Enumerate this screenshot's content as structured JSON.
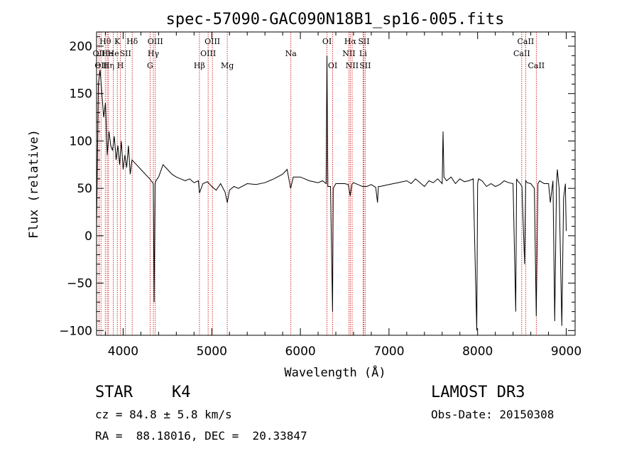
{
  "chart_data": {
    "type": "line",
    "title": "spec-57090-GAC090N18B1_sp16-005.fits",
    "xlabel": "Wavelength (Å)",
    "ylabel": "Flux (relative)",
    "xlim": [
      3700,
      9100
    ],
    "ylim": [
      -105,
      215
    ],
    "xticks": [
      4000,
      5000,
      6000,
      7000,
      8000,
      9000
    ],
    "xtick_labels": [
      "4000",
      "5000",
      "6000",
      "7000",
      "8000",
      "9000"
    ],
    "yticks": [
      -100,
      -50,
      0,
      50,
      100,
      150,
      200
    ],
    "ytick_labels": [
      "−100",
      "−50",
      "0",
      "50",
      "100",
      "150",
      "200"
    ],
    "grid": false,
    "spectrum": {
      "name": "flux",
      "x": [
        3700,
        3720,
        3740,
        3760,
        3780,
        3800,
        3820,
        3840,
        3860,
        3880,
        3900,
        3920,
        3940,
        3960,
        3980,
        4000,
        4020,
        4040,
        4060,
        4080,
        4100,
        4150,
        4200,
        4250,
        4300,
        4340,
        4350,
        4360,
        4370,
        4400,
        4450,
        4500,
        4550,
        4600,
        4650,
        4700,
        4750,
        4800,
        4850,
        4861,
        4900,
        4950,
        5000,
        5050,
        5100,
        5150,
        5175,
        5200,
        5250,
        5300,
        5400,
        5500,
        5600,
        5700,
        5800,
        5850,
        5890,
        5895,
        5920,
        6000,
        6100,
        6200,
        6250,
        6290,
        6300,
        6310,
        6340,
        6363,
        6370,
        6400,
        6500,
        6540,
        6563,
        6580,
        6600,
        6650,
        6700,
        6750,
        6800,
        6850,
        6870,
        6880,
        6900,
        7000,
        7100,
        7200,
        7250,
        7300,
        7350,
        7400,
        7450,
        7500,
        7550,
        7600,
        7610,
        7620,
        7650,
        7700,
        7750,
        7800,
        7850,
        7900,
        7950,
        7990,
        8000,
        8010,
        8050,
        8100,
        8150,
        8200,
        8250,
        8300,
        8350,
        8400,
        8430,
        8440,
        8450,
        8480,
        8500,
        8530,
        8542,
        8560,
        8600,
        8640,
        8662,
        8680,
        8700,
        8750,
        8800,
        8820,
        8850,
        8870,
        8890,
        8900,
        8920,
        8950,
        8970,
        8990,
        9000
      ],
      "y": [
        5,
        160,
        175,
        150,
        125,
        140,
        85,
        110,
        95,
        90,
        105,
        80,
        95,
        75,
        100,
        70,
        85,
        72,
        95,
        65,
        80,
        75,
        70,
        65,
        60,
        55,
        -70,
        55,
        58,
        62,
        75,
        70,
        65,
        62,
        60,
        58,
        60,
        56,
        58,
        45,
        55,
        57,
        52,
        48,
        55,
        46,
        35,
        48,
        52,
        50,
        55,
        54,
        56,
        60,
        65,
        70,
        50,
        52,
        62,
        62,
        58,
        56,
        58,
        55,
        190,
        52,
        52,
        -80,
        50,
        55,
        55,
        54,
        42,
        54,
        56,
        54,
        52,
        52,
        54,
        51,
        35,
        52,
        52,
        54,
        56,
        58,
        55,
        60,
        56,
        52,
        58,
        56,
        60,
        55,
        110,
        62,
        58,
        62,
        55,
        60,
        57,
        58,
        60,
        -100,
        55,
        60,
        58,
        52,
        55,
        52,
        54,
        58,
        56,
        55,
        -80,
        60,
        58,
        55,
        52,
        -30,
        58,
        56,
        55,
        50,
        -85,
        55,
        58,
        55,
        55,
        35,
        58,
        -90,
        55,
        70,
        50,
        -95,
        40,
        55,
        5
      ]
    },
    "lines": [
      {
        "wave": 3727,
        "label": "OII",
        "row": 2
      },
      {
        "wave": 3750,
        "label": "OII",
        "row": 3
      },
      {
        "wave": 3798,
        "label": "Hθ",
        "row": 1
      },
      {
        "wave": 3820,
        "label": "He",
        "row": 2
      },
      {
        "wave": 3835,
        "label": "Hη",
        "row": 3
      },
      {
        "wave": 3889,
        "label": "He",
        "row": 2
      },
      {
        "wave": 3934,
        "label": "K",
        "row": 1
      },
      {
        "wave": 3969,
        "label": "H",
        "row": 3
      },
      {
        "wave": 4026,
        "label": "SII",
        "row": 2
      },
      {
        "wave": 4102,
        "label": "Hδ",
        "row": 1
      },
      {
        "wave": 4304,
        "label": "G",
        "row": 3
      },
      {
        "wave": 4341,
        "label": "Hγ",
        "row": 2
      },
      {
        "wave": 4363,
        "label": "OIII",
        "row": 1
      },
      {
        "wave": 4861,
        "label": "Hβ",
        "row": 3
      },
      {
        "wave": 4959,
        "label": "OIII",
        "row": 2
      },
      {
        "wave": 5007,
        "label": "OIII",
        "row": 1
      },
      {
        "wave": 5175,
        "label": "Mg",
        "row": 3
      },
      {
        "wave": 5893,
        "label": "Na",
        "row": 2
      },
      {
        "wave": 6300,
        "label": "OI",
        "row": 1
      },
      {
        "wave": 6364,
        "label": "OI",
        "row": 3
      },
      {
        "wave": 6548,
        "label": "NII",
        "row": 2
      },
      {
        "wave": 6563,
        "label": "Hα",
        "row": 1
      },
      {
        "wave": 6584,
        "label": "NII",
        "row": 3
      },
      {
        "wave": 6707,
        "label": "Li",
        "row": 2
      },
      {
        "wave": 6716,
        "label": "SII",
        "row": 1
      },
      {
        "wave": 6731,
        "label": "SII",
        "row": 3
      },
      {
        "wave": 8498,
        "label": "CaII",
        "row": 2
      },
      {
        "wave": 8542,
        "label": "CaII",
        "row": 1
      },
      {
        "wave": 8662,
        "label": "CaII",
        "row": 3
      }
    ]
  },
  "info": {
    "class_label": "STAR",
    "subclass": "K4",
    "cz": "cz = 84.8 ± 5.8 km/s",
    "radec": "RA =  88.18016, DEC =  20.33847",
    "survey": "LAMOST DR3",
    "obs_date": "Obs-Date: 20150308"
  },
  "colors": {
    "spectrum": "#000000",
    "line_markers": "#cc0000",
    "axes": "#000000"
  }
}
